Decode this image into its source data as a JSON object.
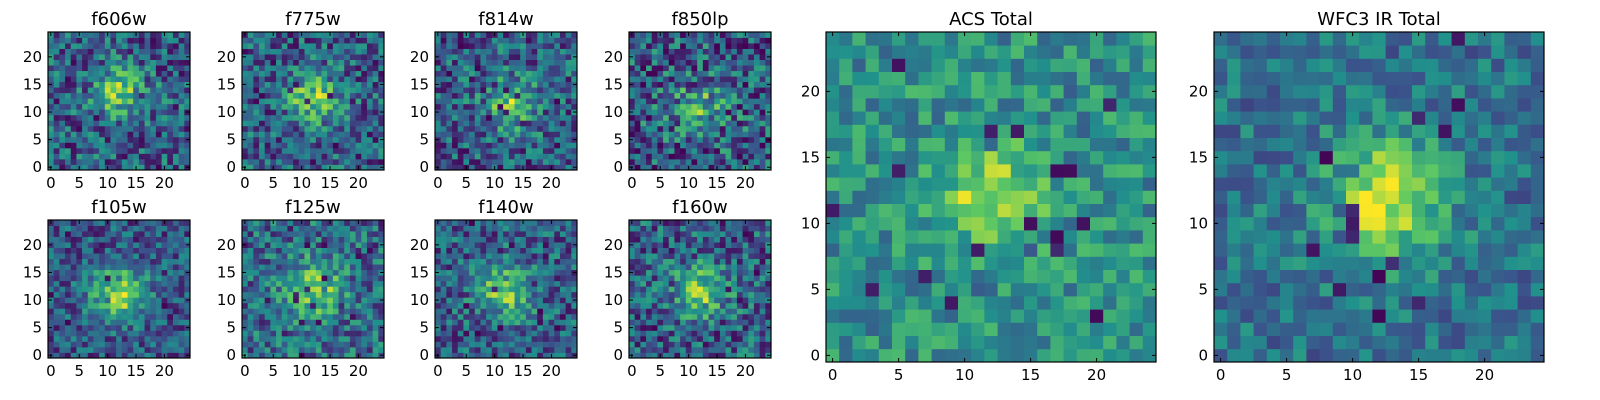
{
  "figure": {
    "colormap": "viridis",
    "colors": [
      "#440154",
      "#3b528b",
      "#21918c",
      "#5ec962",
      "#fde725"
    ],
    "background": "#ffffff"
  },
  "chart_data": [
    {
      "type": "heatmap",
      "title": "f606w",
      "grid": 25,
      "center": [
        12,
        13.5
      ],
      "sigma": 3.2,
      "amp": 0.45,
      "noise": 0.55,
      "bad": 0.04,
      "base": 0.3,
      "xticks": [
        0,
        5,
        10,
        15,
        20
      ],
      "yticks": [
        0,
        5,
        10,
        15,
        20
      ],
      "xlim": [
        -0.5,
        24.5
      ],
      "ylim": [
        -0.5,
        24.5
      ]
    },
    {
      "type": "heatmap",
      "title": "f775w",
      "grid": 25,
      "center": [
        12,
        12.5
      ],
      "sigma": 3.2,
      "amp": 0.45,
      "noise": 0.55,
      "bad": 0.04,
      "base": 0.3,
      "xticks": [
        0,
        5,
        10,
        15,
        20
      ],
      "yticks": [
        0,
        5,
        10,
        15,
        20
      ],
      "xlim": [
        -0.5,
        24.5
      ],
      "ylim": [
        -0.5,
        24.5
      ]
    },
    {
      "type": "heatmap",
      "title": "f814w",
      "grid": 25,
      "center": [
        13,
        11.5
      ],
      "sigma": 3.2,
      "amp": 0.45,
      "noise": 0.55,
      "bad": 0.05,
      "base": 0.3,
      "xticks": [
        0,
        5,
        10,
        15,
        20
      ],
      "yticks": [
        0,
        5,
        10,
        15,
        20
      ],
      "xlim": [
        -0.5,
        24.5
      ],
      "ylim": [
        -0.5,
        24.5
      ]
    },
    {
      "type": "heatmap",
      "title": "f850lp",
      "grid": 25,
      "center": [
        12,
        11
      ],
      "sigma": 3.0,
      "amp": 0.35,
      "noise": 0.65,
      "bad": 0.05,
      "base": 0.3,
      "xticks": [
        0,
        5,
        10,
        15,
        20
      ],
      "yticks": [
        0,
        5,
        10,
        15,
        20
      ],
      "xlim": [
        -0.5,
        24.5
      ],
      "ylim": [
        -0.5,
        24.5
      ]
    },
    {
      "type": "heatmap",
      "title": "f105w",
      "grid": 25,
      "center": [
        12,
        11
      ],
      "sigma": 3.4,
      "amp": 0.55,
      "noise": 0.45,
      "bad": 0.04,
      "base": 0.28,
      "xticks": [
        0,
        5,
        10,
        15,
        20
      ],
      "yticks": [
        0,
        5,
        10,
        15,
        20
      ],
      "xlim": [
        -0.5,
        24.5
      ],
      "ylim": [
        -0.5,
        24.5
      ]
    },
    {
      "type": "heatmap",
      "title": "f125w",
      "grid": 25,
      "center": [
        12,
        12
      ],
      "sigma": 3.6,
      "amp": 0.45,
      "noise": 0.5,
      "bad": 0.04,
      "base": 0.35,
      "xticks": [
        0,
        5,
        10,
        15,
        20
      ],
      "yticks": [
        0,
        5,
        10,
        15,
        20
      ],
      "xlim": [
        -0.5,
        24.5
      ],
      "ylim": [
        -0.5,
        24.5
      ]
    },
    {
      "type": "heatmap",
      "title": "f140w",
      "grid": 25,
      "center": [
        12,
        12
      ],
      "sigma": 3.4,
      "amp": 0.5,
      "noise": 0.5,
      "bad": 0.04,
      "base": 0.3,
      "xticks": [
        0,
        5,
        10,
        15,
        20
      ],
      "yticks": [
        0,
        5,
        10,
        15,
        20
      ],
      "xlim": [
        -0.5,
        24.5
      ],
      "ylim": [
        -0.5,
        24.5
      ]
    },
    {
      "type": "heatmap",
      "title": "f160w",
      "grid": 25,
      "center": [
        12,
        11.5
      ],
      "sigma": 3.4,
      "amp": 0.45,
      "noise": 0.55,
      "bad": 0.04,
      "base": 0.3,
      "xticks": [
        0,
        5,
        10,
        15,
        20
      ],
      "yticks": [
        0,
        5,
        10,
        15,
        20
      ],
      "xlim": [
        -0.5,
        24.5
      ],
      "ylim": [
        -0.5,
        24.5
      ]
    },
    {
      "type": "heatmap",
      "title": "ACS Total",
      "grid": 25,
      "center": [
        12,
        12
      ],
      "sigma": 2.6,
      "amp": 0.4,
      "noise": 0.38,
      "bad": 0.02,
      "base": 0.5,
      "xticks": [
        0,
        5,
        10,
        15,
        20
      ],
      "yticks": [
        0,
        5,
        10,
        15,
        20
      ],
      "xlim": [
        -0.5,
        24.5
      ],
      "ylim": [
        -0.5,
        24.5
      ]
    },
    {
      "type": "heatmap",
      "title": "WFC3 IR Total",
      "grid": 25,
      "center": [
        12.5,
        12
      ],
      "sigma": 3.2,
      "amp": 0.55,
      "noise": 0.35,
      "bad": 0.02,
      "base": 0.38,
      "xticks": [
        0,
        5,
        10,
        15,
        20
      ],
      "yticks": [
        0,
        5,
        10,
        15,
        20
      ],
      "xlim": [
        -0.5,
        24.5
      ],
      "ylim": [
        -0.5,
        24.5
      ]
    }
  ]
}
